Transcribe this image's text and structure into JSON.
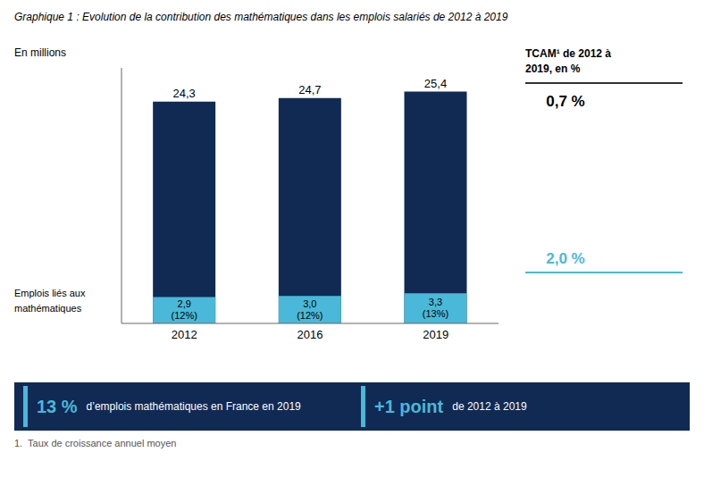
{
  "chart_data": {
    "type": "bar",
    "title": "Graphique 1 : Evolution de la contribution des mathématiques dans les emplois salariés de 2012 à 2019",
    "y_label": "En millions",
    "categories": [
      "2012",
      "2016",
      "2019"
    ],
    "series": [
      {
        "color": "#102a54",
        "values": [
          24.3,
          24.7,
          25.4
        ],
        "value_labels": [
          "24,3",
          "24,7",
          "25,4"
        ]
      },
      {
        "name": "Emplois liés aux\nmathématiques",
        "color": "#4ab8d8",
        "values": [
          2.9,
          3.0,
          3.3
        ],
        "value_labels": [
          "2,9",
          "3,0",
          "3,3"
        ],
        "share_labels": [
          "(12%)",
          "(12%)",
          "(13%)"
        ]
      }
    ],
    "stacked": false,
    "data_labels": true,
    "ylim": [
      0,
      28
    ],
    "tick_labels": "x",
    "grid": false,
    "annotations": {
      "tcam_heading": [
        "TCAM¹ de 2012 à",
        "2019, en %"
      ],
      "tcam_total": "0,7 %",
      "tcam_math": "2,0 %",
      "banner": [
        {
          "bold": "13 %",
          "text": "d’emplois mathématiques en France en 2019"
        },
        {
          "bold": "+1 point",
          "text": "de 2012 à 2019"
        }
      ],
      "footnote": "1.  Taux de croissance annuel moyen"
    }
  }
}
